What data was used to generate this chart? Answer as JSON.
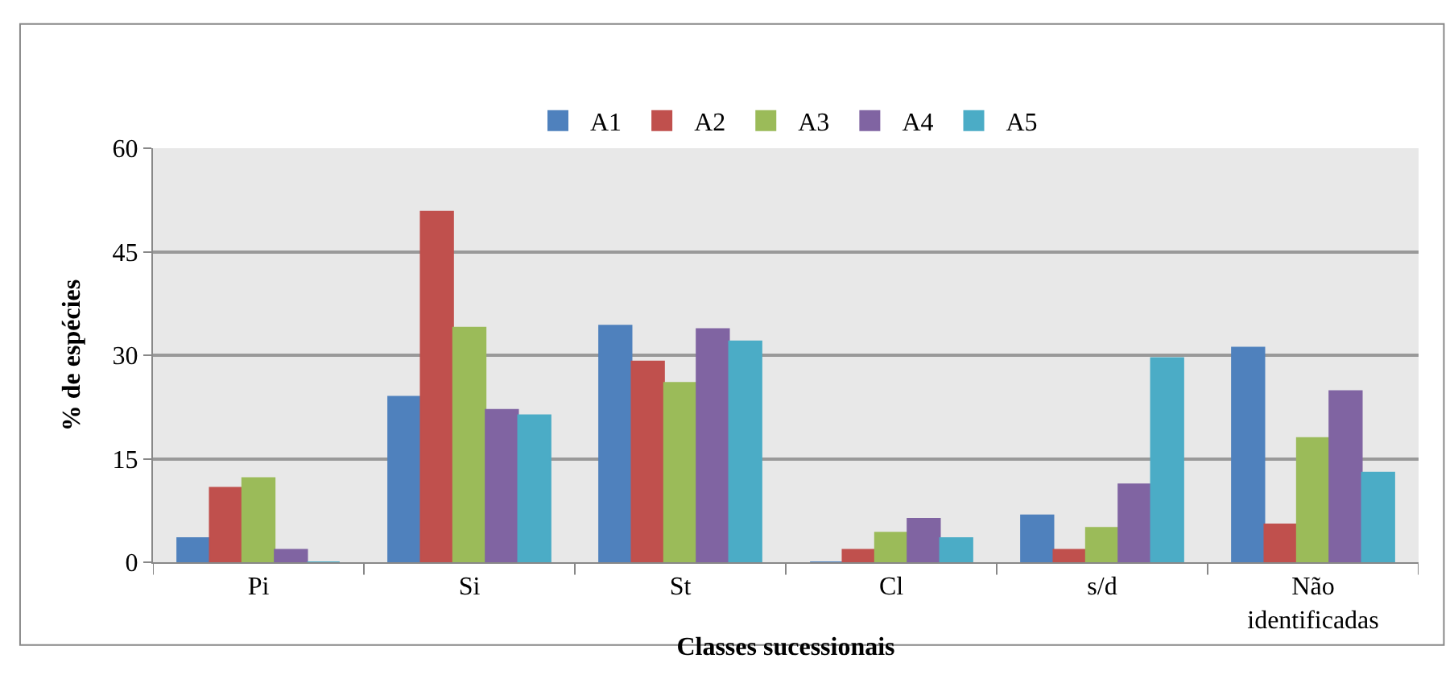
{
  "chart_data": {
    "type": "bar",
    "xlabel": "Classes sucessionais",
    "ylabel": "% de espécies",
    "categories": [
      "Pi",
      "Si",
      "St",
      "Cl",
      "s/d",
      "Não identificadas"
    ],
    "series": [
      {
        "name": "A1",
        "color": "#4f81bd",
        "values": [
          3.5,
          24.0,
          34.3,
          0,
          6.8,
          31.1
        ]
      },
      {
        "name": "A2",
        "color": "#c0504d",
        "values": [
          10.8,
          50.8,
          29.1,
          1.8,
          1.8,
          5.5
        ]
      },
      {
        "name": "A3",
        "color": "#9bbb59",
        "values": [
          12.2,
          34.0,
          26.0,
          4.3,
          5.0,
          18.0
        ]
      },
      {
        "name": "A4",
        "color": "#8064a2",
        "values": [
          1.8,
          22.1,
          33.8,
          6.3,
          11.3,
          24.8
        ]
      },
      {
        "name": "A5",
        "color": "#4bacc6",
        "values": [
          0,
          21.3,
          32.0,
          3.5,
          29.6,
          13.0
        ]
      }
    ],
    "ylim": [
      0,
      60
    ],
    "yticks": [
      0,
      15,
      30,
      45,
      60
    ],
    "grid": "y",
    "legend": "top"
  }
}
